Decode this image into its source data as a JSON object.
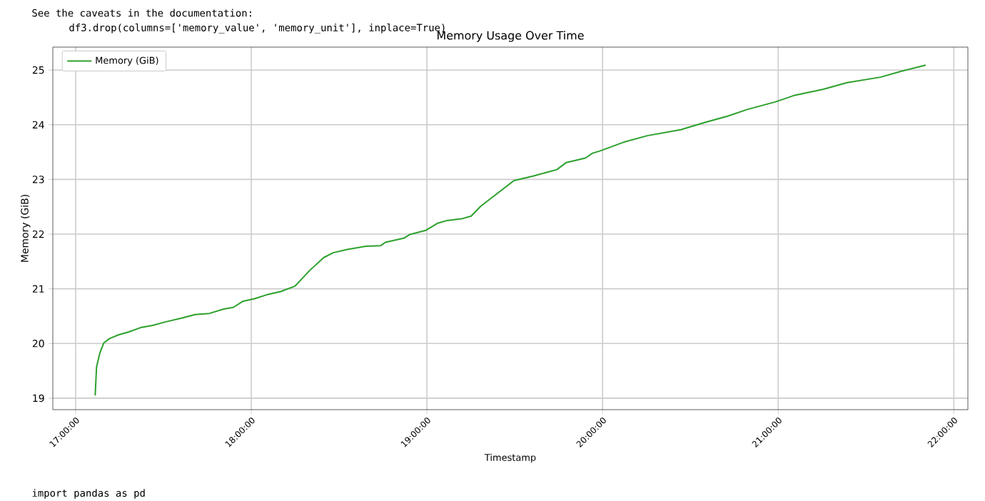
{
  "chart_data": {
    "type": "line",
    "title": "Memory Usage Over Time",
    "xlabel": "Timestamp",
    "ylabel": "Memory (GiB)",
    "annotations": [
      "See the caveats in the documentation:",
      "df3.drop(columns=['memory_value', 'memory_unit'], inplace=True)",
      "import pandas as pd"
    ],
    "xlim": [
      16.87,
      22.08
    ],
    "ylim": [
      18.79,
      25.42
    ],
    "xticks": [
      {
        "value": 17,
        "label": "17:00:00"
      },
      {
        "value": 18,
        "label": "18:00:00"
      },
      {
        "value": 19,
        "label": "19:00:00"
      },
      {
        "value": 20,
        "label": "20:00:00"
      },
      {
        "value": 21,
        "label": "21:00:00"
      },
      {
        "value": 22,
        "label": "22:00:00"
      }
    ],
    "yticks": [
      19,
      20,
      21,
      22,
      23,
      24,
      25
    ],
    "grid": true,
    "legend": "top left",
    "marker": "none",
    "line_style": "solid",
    "series": [
      {
        "name": "Memory (GiB)",
        "color": "#2ca02c",
        "x": [
          17.111,
          17.119,
          17.138,
          17.16,
          17.193,
          17.246,
          17.301,
          17.369,
          17.437,
          17.518,
          17.599,
          17.68,
          17.762,
          17.843,
          17.897,
          17.951,
          18.019,
          18.087,
          18.168,
          18.249,
          18.331,
          18.412,
          18.466,
          18.547,
          18.656,
          18.737,
          18.764,
          18.872,
          18.9,
          18.994,
          19.062,
          19.116,
          19.197,
          19.252,
          19.306,
          19.496,
          19.604,
          19.74,
          19.794,
          19.902,
          19.943,
          19.984,
          20.119,
          20.255,
          20.445,
          20.58,
          20.715,
          20.824,
          20.986,
          21.095,
          21.258,
          21.393,
          21.583,
          21.691,
          21.84
        ],
        "values": [
          19.05,
          19.57,
          19.83,
          20.01,
          20.09,
          20.16,
          20.21,
          20.29,
          20.33,
          20.4,
          20.46,
          20.53,
          20.55,
          20.63,
          20.66,
          20.77,
          20.82,
          20.89,
          20.95,
          21.05,
          21.33,
          21.57,
          21.66,
          21.72,
          21.78,
          21.79,
          21.85,
          21.93,
          21.99,
          22.07,
          22.2,
          22.25,
          22.28,
          22.33,
          22.51,
          22.98,
          23.06,
          23.18,
          23.31,
          23.39,
          23.48,
          23.52,
          23.68,
          23.8,
          23.91,
          24.04,
          24.16,
          24.28,
          24.42,
          24.54,
          24.65,
          24.77,
          24.87,
          24.97,
          25.09
        ]
      }
    ]
  }
}
